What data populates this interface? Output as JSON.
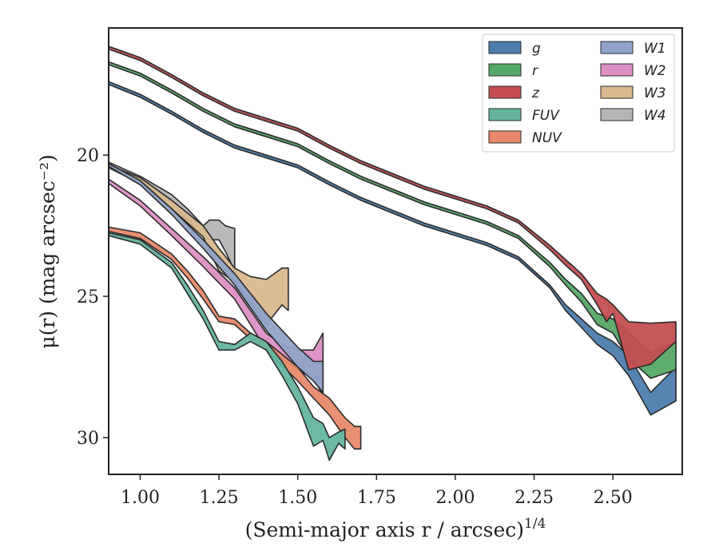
{
  "chart_data": {
    "type": "area",
    "title": "",
    "xlabel": "(Semi-major axis r / arcsec)",
    "xlabel_superscript": "1/4",
    "ylabel": "μ(r) (mag arcsec⁻²)",
    "xlim": [
      0.9,
      2.72
    ],
    "ylim": [
      31.3,
      15.5
    ],
    "y_inverted": true,
    "x_ticks": [
      1.0,
      1.25,
      1.5,
      1.75,
      2.0,
      2.25,
      2.5
    ],
    "x_tick_labels": [
      "1.00",
      "1.25",
      "1.50",
      "1.75",
      "2.00",
      "2.25",
      "2.50"
    ],
    "y_ticks": [
      20,
      25,
      30
    ],
    "y_tick_labels": [
      "20",
      "25",
      "30"
    ],
    "grid": false,
    "legend_position": "top-right",
    "legend_columns": 2,
    "series": [
      {
        "name": "g",
        "color": "#4c7dae",
        "x": [
          0.9,
          1.0,
          1.1,
          1.2,
          1.3,
          1.4,
          1.5,
          1.6,
          1.7,
          1.8,
          1.9,
          2.0,
          2.1,
          2.2,
          2.3,
          2.35,
          2.4,
          2.45,
          2.5,
          2.55,
          2.62,
          2.7
        ],
        "lower": [
          17.4,
          17.85,
          18.45,
          19.1,
          19.65,
          20.0,
          20.35,
          20.95,
          21.5,
          21.95,
          22.4,
          22.75,
          23.1,
          23.6,
          24.6,
          25.3,
          25.8,
          26.3,
          26.6,
          27.1,
          28.4,
          27.5
        ],
        "upper": [
          17.5,
          17.95,
          18.55,
          19.2,
          19.75,
          20.1,
          20.45,
          21.05,
          21.6,
          22.05,
          22.5,
          22.85,
          23.2,
          23.7,
          24.7,
          25.5,
          26.1,
          26.7,
          27.1,
          27.8,
          29.2,
          28.7
        ]
      },
      {
        "name": "r",
        "color": "#55a868",
        "x": [
          0.9,
          1.0,
          1.1,
          1.2,
          1.3,
          1.4,
          1.5,
          1.6,
          1.7,
          1.8,
          1.9,
          2.0,
          2.1,
          2.2,
          2.3,
          2.35,
          2.4,
          2.45,
          2.5,
          2.55,
          2.62,
          2.7
        ],
        "lower": [
          16.7,
          17.1,
          17.7,
          18.35,
          18.9,
          19.25,
          19.6,
          20.2,
          20.75,
          21.2,
          21.65,
          22.0,
          22.35,
          22.85,
          23.8,
          24.4,
          24.9,
          25.6,
          25.8,
          26.3,
          27.0,
          26.6
        ],
        "upper": [
          16.8,
          17.2,
          17.8,
          18.45,
          19.0,
          19.35,
          19.7,
          20.3,
          20.85,
          21.3,
          21.75,
          22.1,
          22.45,
          22.95,
          23.95,
          24.6,
          25.2,
          26.0,
          26.3,
          27.2,
          27.9,
          27.6
        ]
      },
      {
        "name": "z",
        "color": "#c44e52",
        "x": [
          0.9,
          1.0,
          1.1,
          1.2,
          1.3,
          1.4,
          1.5,
          1.6,
          1.7,
          1.8,
          1.9,
          2.0,
          2.1,
          2.2,
          2.3,
          2.35,
          2.4,
          2.45,
          2.48,
          2.5,
          2.55,
          2.62,
          2.7
        ],
        "lower": [
          16.15,
          16.55,
          17.15,
          17.8,
          18.35,
          18.7,
          19.05,
          19.65,
          20.2,
          20.65,
          21.1,
          21.45,
          21.8,
          22.3,
          23.2,
          23.7,
          24.2,
          24.9,
          25.1,
          25.3,
          25.9,
          25.95,
          25.9
        ],
        "upper": [
          16.25,
          16.65,
          17.25,
          17.9,
          18.45,
          18.8,
          19.15,
          19.75,
          20.3,
          20.75,
          21.2,
          21.55,
          21.9,
          22.4,
          23.35,
          23.9,
          24.4,
          25.3,
          25.9,
          25.6,
          27.6,
          27.4,
          26.6
        ]
      },
      {
        "name": "FUV",
        "color": "#64b5a0",
        "x": [
          0.9,
          1.0,
          1.1,
          1.15,
          1.2,
          1.25,
          1.3,
          1.35,
          1.4,
          1.45,
          1.5,
          1.55,
          1.58,
          1.6,
          1.63,
          1.65
        ],
        "lower": [
          22.75,
          23.0,
          23.8,
          24.6,
          25.5,
          26.6,
          26.7,
          26.3,
          26.6,
          27.3,
          28.2,
          29.3,
          29.5,
          30.0,
          29.8,
          29.7
        ],
        "upper": [
          22.85,
          23.15,
          24.0,
          24.9,
          25.8,
          26.9,
          26.9,
          26.6,
          26.9,
          27.8,
          28.8,
          30.3,
          30.1,
          30.8,
          30.2,
          30.4
        ]
      },
      {
        "name": "NUV",
        "color": "#e8896a",
        "x": [
          0.9,
          1.0,
          1.1,
          1.15,
          1.2,
          1.25,
          1.3,
          1.35,
          1.4,
          1.5,
          1.55,
          1.6,
          1.65,
          1.68,
          1.7
        ],
        "lower": [
          22.55,
          22.75,
          23.5,
          24.1,
          24.8,
          25.7,
          25.8,
          26.3,
          26.6,
          27.5,
          28.2,
          28.6,
          29.3,
          29.6,
          29.6
        ],
        "upper": [
          22.7,
          22.95,
          23.7,
          24.35,
          25.1,
          25.9,
          26.0,
          26.5,
          26.9,
          28.0,
          28.6,
          29.2,
          30.0,
          30.4,
          30.4
        ]
      },
      {
        "name": "W1",
        "color": "#8fa3c8",
        "x": [
          0.9,
          1.0,
          1.1,
          1.2,
          1.3,
          1.4,
          1.5,
          1.55,
          1.58
        ],
        "lower": [
          20.3,
          20.9,
          21.9,
          23.0,
          24.2,
          25.6,
          26.8,
          27.3,
          27.3
        ],
        "upper": [
          20.4,
          21.05,
          22.1,
          23.3,
          24.6,
          26.2,
          27.5,
          28.0,
          28.4
        ]
      },
      {
        "name": "W2",
        "color": "#dd8fc4",
        "x": [
          0.9,
          1.0,
          1.1,
          1.2,
          1.3,
          1.4,
          1.45,
          1.5,
          1.55,
          1.58
        ],
        "lower": [
          20.85,
          21.6,
          22.6,
          23.6,
          24.7,
          26.3,
          26.7,
          26.9,
          26.9,
          26.3
        ],
        "upper": [
          21.0,
          21.8,
          22.85,
          23.95,
          25.1,
          26.9,
          27.2,
          27.6,
          27.9,
          28.5
        ]
      },
      {
        "name": "W3",
        "color": "#d9b98e",
        "x": [
          0.9,
          1.0,
          1.1,
          1.2,
          1.25,
          1.3,
          1.35,
          1.4,
          1.45,
          1.47
        ],
        "lower": [
          20.35,
          20.8,
          21.6,
          22.5,
          23.3,
          24.0,
          24.3,
          24.4,
          24.0,
          24.0
        ],
        "upper": [
          20.45,
          21.0,
          21.9,
          22.9,
          24.1,
          24.5,
          25.2,
          26.0,
          25.3,
          25.5
        ]
      },
      {
        "name": "W4",
        "color": "#b5b5b5",
        "x": [
          0.9,
          1.0,
          1.1,
          1.15,
          1.2,
          1.22,
          1.25,
          1.27,
          1.3
        ],
        "lower": [
          20.25,
          20.75,
          21.4,
          21.9,
          22.5,
          22.3,
          22.3,
          22.5,
          22.6
        ],
        "upper": [
          20.4,
          20.95,
          21.7,
          22.3,
          22.9,
          23.0,
          23.0,
          23.4,
          24.1
        ]
      }
    ]
  }
}
